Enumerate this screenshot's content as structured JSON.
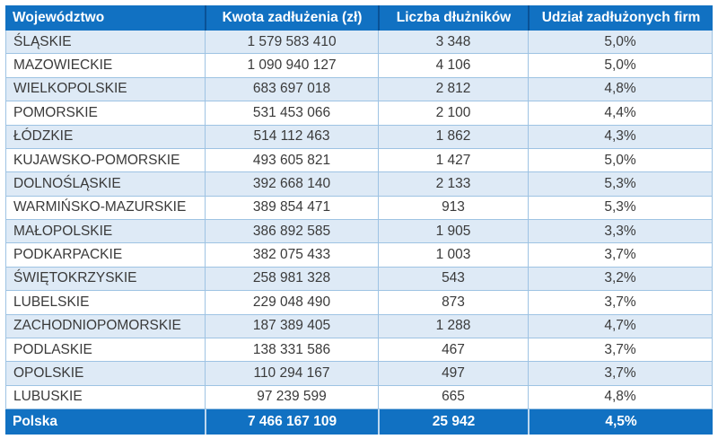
{
  "chart_data": {
    "type": "table",
    "title": "",
    "columns": [
      "Województwo",
      "Kwota zadłużenia (zł)",
      "Liczba dłużników",
      "Udział zadłużonych firm"
    ],
    "rows": [
      [
        "ŚLĄSKIE",
        "1 579 583 410",
        "3 348",
        "5,0%"
      ],
      [
        "MAZOWIECKIE",
        "1 090 940 127",
        "4 106",
        "5,0%"
      ],
      [
        "WIELKOPOLSKIE",
        "683 697 018",
        "2 812",
        "4,8%"
      ],
      [
        "POMORSKIE",
        "531 453 066",
        "2 100",
        "4,4%"
      ],
      [
        "ŁÓDZKIE",
        "514 112 463",
        "1 862",
        "4,3%"
      ],
      [
        "KUJAWSKO-POMORSKIE",
        "493 605 821",
        "1 427",
        "5,0%"
      ],
      [
        "DOLNOŚLĄSKIE",
        "392 668 140",
        "2 133",
        "5,3%"
      ],
      [
        "WARMIŃSKO-MAZURSKIE",
        "389 854 471",
        "913",
        "5,3%"
      ],
      [
        "MAŁOPOLSKIE",
        "386 892 585",
        "1 905",
        "3,3%"
      ],
      [
        "PODKARPACKIE",
        "382 075 433",
        "1 003",
        "3,7%"
      ],
      [
        "ŚWIĘTOKRZYSKIE",
        "258 981 328",
        "543",
        "3,2%"
      ],
      [
        "LUBELSKIE",
        "229 048 490",
        "873",
        "3,7%"
      ],
      [
        "ZACHODNIOPOMORSKIE",
        "187 389 405",
        "1 288",
        "4,7%"
      ],
      [
        "PODLASKIE",
        "138 331 586",
        "467",
        "3,7%"
      ],
      [
        "OPOLSKIE",
        "110 294 167",
        "497",
        "3,7%"
      ],
      [
        "LUBUSKIE",
        "97 239 599",
        "665",
        "4,8%"
      ]
    ],
    "footer": [
      "Polska",
      "7 466 167 109",
      "25 942",
      "4,5%"
    ]
  },
  "colors": {
    "header_bg": "#1171C2",
    "header_text": "#FFFFFF",
    "header_separator": "#0A5296",
    "stripe_bg": "#DEEAF6",
    "row_bg": "#FFFFFF",
    "border": "#9EC3E3",
    "footer_bg": "#1171C2",
    "footer_separator": "#BDD7EE",
    "body_text": "#3A3A3A"
  }
}
